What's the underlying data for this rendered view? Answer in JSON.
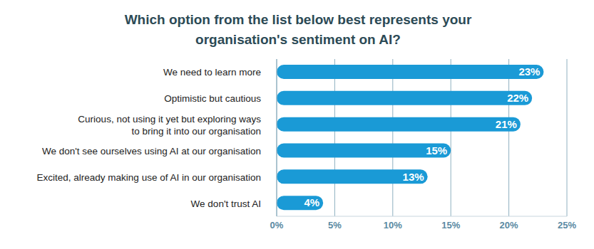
{
  "chart_data": {
    "type": "bar",
    "orientation": "horizontal",
    "title": "Which option from the list below best represents your organisation's sentiment on AI?",
    "categories": [
      "We need to learn more",
      "Optimistic but cautious",
      "Curious, not using it yet but exploring ways to bring it into our organisation",
      "We don't see ourselves using AI at our organisation",
      "Excited, already making use of AI in our organisation",
      "We don't trust AI"
    ],
    "values": [
      23,
      22,
      21,
      15,
      13,
      4
    ],
    "value_labels": [
      "23%",
      "22%",
      "21%",
      "15%",
      "13%",
      "4%"
    ],
    "color": "#1a9ad6",
    "xlim": [
      0,
      25
    ],
    "xticks": [
      {
        "value": 0,
        "label": "0%"
      },
      {
        "value": 5,
        "label": "5%"
      },
      {
        "value": 10,
        "label": "10%"
      },
      {
        "value": 15,
        "label": "15%"
      },
      {
        "value": 20,
        "label": "20%"
      },
      {
        "value": 25,
        "label": "25%"
      }
    ],
    "grid": true,
    "data_labels": true
  }
}
